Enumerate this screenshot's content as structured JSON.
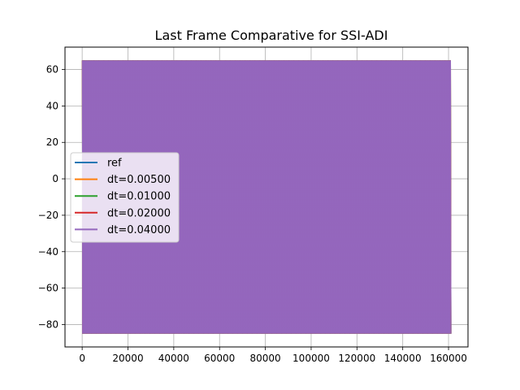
{
  "chart_data": {
    "type": "line",
    "title": "Last Frame Comparative for SSI-ADI",
    "xlabel": "",
    "ylabel": "",
    "xlim": [
      -7500,
      168500
    ],
    "ylim": [
      -92.3,
      72.3
    ],
    "xticks": [
      0,
      20000,
      40000,
      60000,
      80000,
      100000,
      120000,
      140000,
      160000
    ],
    "yticks": [
      -80,
      -60,
      -40,
      -20,
      0,
      20,
      40,
      60
    ],
    "grid": true,
    "legend_position": "center-left",
    "signal": {
      "x_range": [
        0,
        161000
      ],
      "y_range": [
        -85,
        65
      ],
      "description": "dense oscillating signal filling the band; series overlap, last drawn on top"
    },
    "series": [
      {
        "name": "ref",
        "color": "#1f77b4"
      },
      {
        "name": "dt=0.00500",
        "color": "#ff7f0e"
      },
      {
        "name": "dt=0.01000",
        "color": "#2ca02c"
      },
      {
        "name": "dt=0.02000",
        "color": "#d62728"
      },
      {
        "name": "dt=0.04000",
        "color": "#9467bd"
      }
    ]
  }
}
